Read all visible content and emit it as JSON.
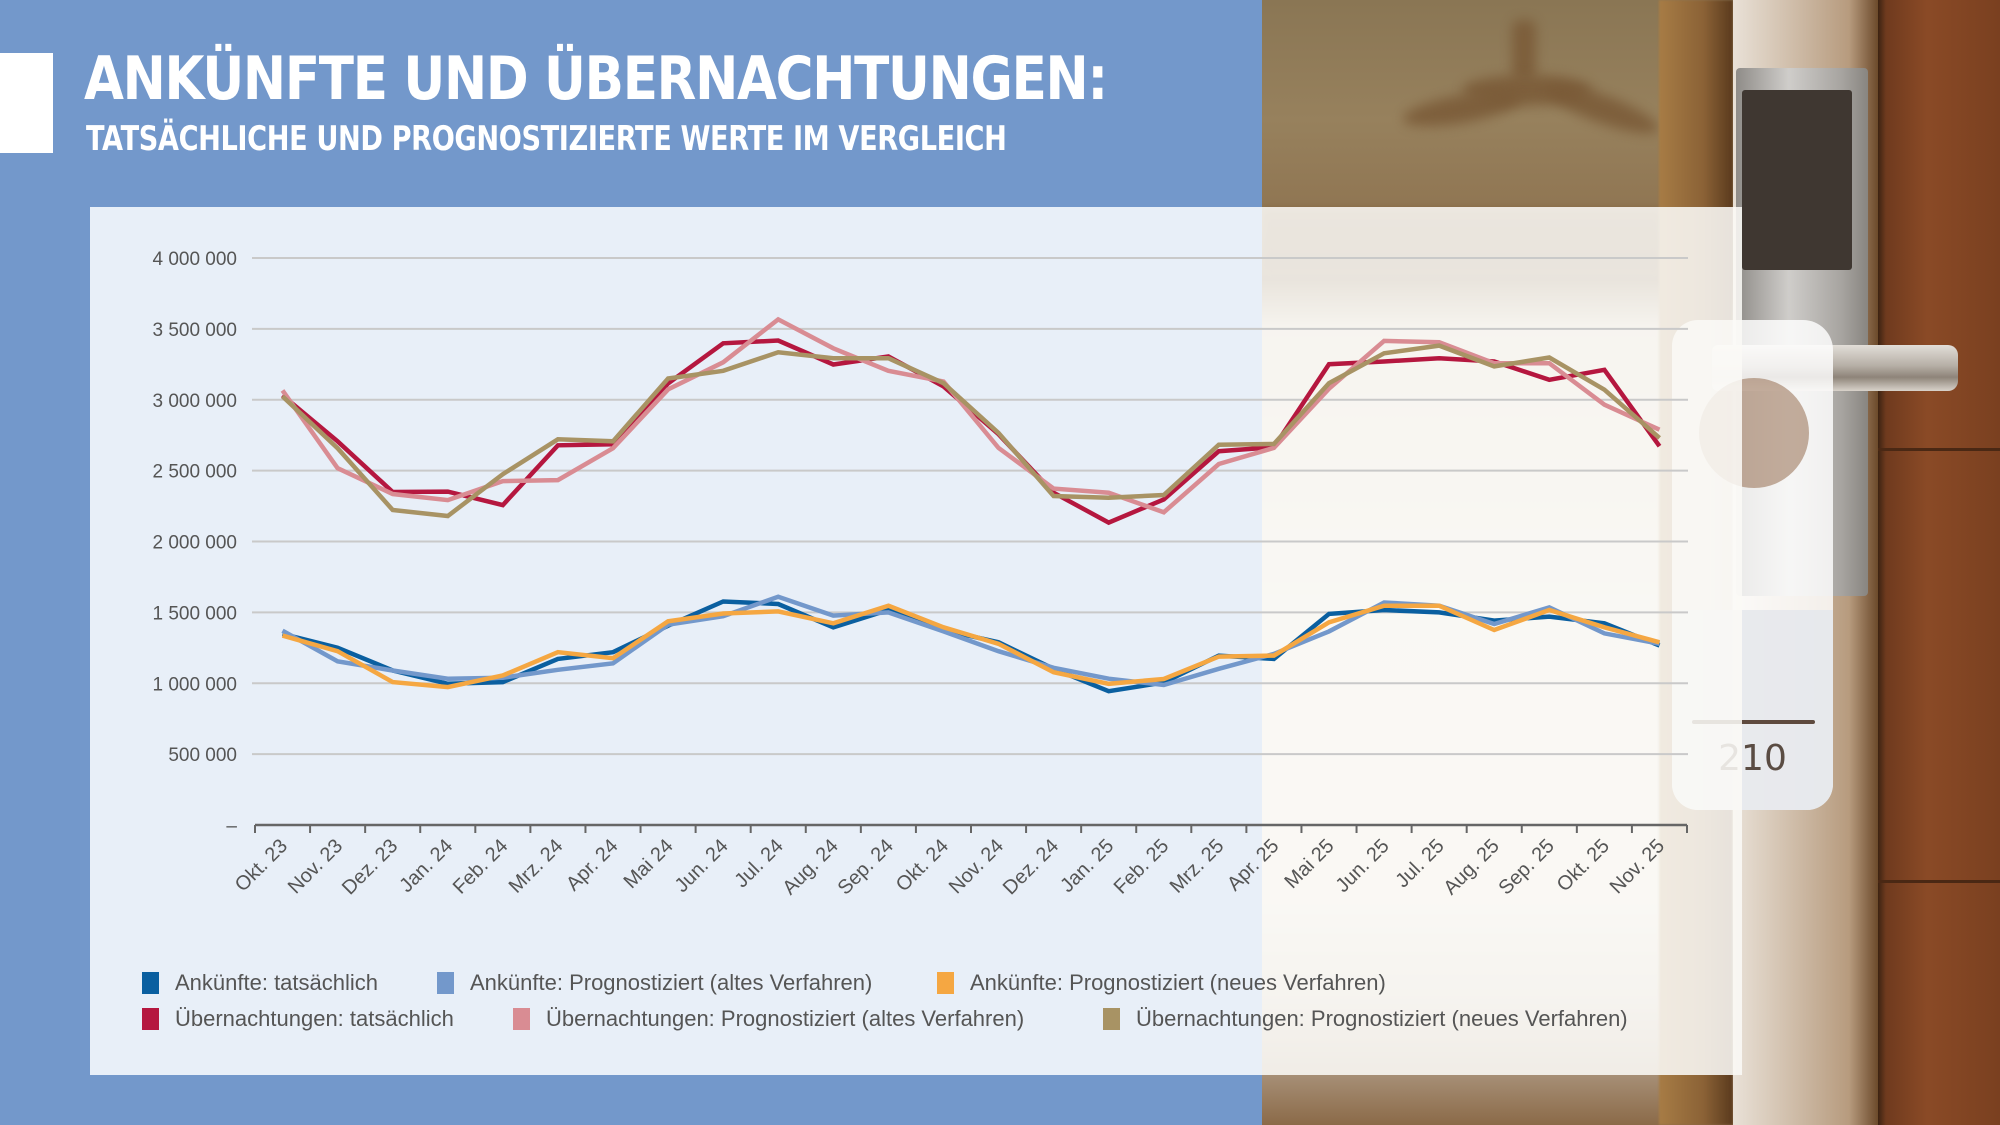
{
  "header": {
    "title": "ANKÜNFTE UND ÜBERNACHTUNGEN:",
    "subtitle": "TATSÄCHLICHE UND PROGNOSTIZIERTE WERTE IM VERGLEICH"
  },
  "photo": {
    "door_hanger_number": "210"
  },
  "chart_data": {
    "type": "line",
    "title": "ANKÜNFTE UND ÜBERNACHTUNGEN: TATSÄCHLICHE UND PROGNOSTIZIERTE WERTE IM VERGLEICH",
    "xlabel": "",
    "ylabel": "",
    "ylim": [
      0,
      4000000
    ],
    "y_ticks": [
      0,
      500000,
      1000000,
      1500000,
      2000000,
      2500000,
      3000000,
      3500000,
      4000000
    ],
    "y_tick_labels": [
      "–",
      "500 000",
      "1 000 000",
      "1 500 000",
      "2 000 000",
      "2 500 000",
      "3 000 000",
      "3 500 000",
      "4 000 000"
    ],
    "grid": true,
    "legend_position": "bottom",
    "categories": [
      "Okt. 23",
      "Nov. 23",
      "Dez. 23",
      "Jan. 24",
      "Feb. 24",
      "Mrz. 24",
      "Apr. 24",
      "Mai 24",
      "Jun. 24",
      "Jul. 24",
      "Aug. 24",
      "Sep. 24",
      "Okt. 24",
      "Nov. 24",
      "Dez. 24",
      "Jan. 25",
      "Feb. 25",
      "Mrz. 25",
      "Apr. 25",
      "Mai 25",
      "Jun. 25",
      "Jul. 25",
      "Aug. 25",
      "Sep. 25",
      "Okt. 25",
      "Nov. 25"
    ],
    "series": [
      {
        "name": "Ankünfte: tatsächlich",
        "color": "#0a5fa0",
        "values": [
          1348000,
          1250000,
          1090000,
          996000,
          1008000,
          1172000,
          1219000,
          1406000,
          1577000,
          1559000,
          1395000,
          1517000,
          1376000,
          1289000,
          1102000,
          944000,
          1005000,
          1195000,
          1172000,
          1489000,
          1517000,
          1500000,
          1442000,
          1470000,
          1423000,
          1266000
        ]
      },
      {
        "name": "Ankünfte: Prognostiziert (altes Verfahren)",
        "color": "#7398cb",
        "values": [
          1371000,
          1155000,
          1090000,
          1032000,
          1039000,
          1095000,
          1141000,
          1413000,
          1473000,
          1610000,
          1477000,
          1500000,
          1366000,
          1226000,
          1109000,
          1032000,
          988000,
          1102000,
          1207000,
          1366000,
          1570000,
          1547000,
          1418000,
          1535000,
          1352000,
          1278000
        ]
      },
      {
        "name": "Ankünfte: Prognostiziert (neues Verfahren)",
        "color": "#f5a742",
        "values": [
          1336000,
          1226000,
          1008000,
          973000,
          1055000,
          1219000,
          1177000,
          1437000,
          1492000,
          1507000,
          1423000,
          1547000,
          1395000,
          1278000,
          1078000,
          996000,
          1030000,
          1188000,
          1195000,
          1430000,
          1547000,
          1547000,
          1376000,
          1517000,
          1395000,
          1289000
        ]
      },
      {
        "name": "Übernachtungen: tatsächlich",
        "color": "#b5173f",
        "values": [
          3031000,
          2707000,
          2349000,
          2352000,
          2257000,
          2679000,
          2686000,
          3115000,
          3398000,
          3418000,
          3249000,
          3305000,
          3094000,
          2757000,
          2344000,
          2133000,
          2297000,
          2637000,
          2665000,
          3251000,
          3270000,
          3293000,
          3270000,
          3141000,
          3211000,
          2672000
        ]
      },
      {
        "name": "Übernachtungen: Prognostiziert (altes Verfahren)",
        "color": "#d98c93",
        "values": [
          3066000,
          2517000,
          2335000,
          2292000,
          2426000,
          2433000,
          2658000,
          3073000,
          3264000,
          3567000,
          3363000,
          3204000,
          3129000,
          2660000,
          2373000,
          2344000,
          2206000,
          2547000,
          2660000,
          3078000,
          3415000,
          3405000,
          3258000,
          3258000,
          2965000,
          2789000
        ]
      },
      {
        "name": "Übernachtungen: Prognostiziert (neues Verfahren)",
        "color": "#a89364",
        "values": [
          3024000,
          2658000,
          2222000,
          2180000,
          2475000,
          2721000,
          2707000,
          3150000,
          3204000,
          3335000,
          3293000,
          3293000,
          3117000,
          2766000,
          2321000,
          2309000,
          2328000,
          2683000,
          2688000,
          3117000,
          3328000,
          3382000,
          3235000,
          3298000,
          3071000,
          2730000
        ]
      }
    ]
  },
  "legend": {
    "row1": [
      {
        "label": "Ankünfte: tatsächlich",
        "color": "#0a5fa0"
      },
      {
        "label": "Ankünfte: Prognostiziert (altes Verfahren)",
        "color": "#7398cb"
      },
      {
        "label": "Ankünfte: Prognostiziert (neues Verfahren)",
        "color": "#f5a742"
      }
    ],
    "row2": [
      {
        "label": "Übernachtungen: tatsächlich",
        "color": "#b5173f"
      },
      {
        "label": "Übernachtungen: Prognostiziert (altes Verfahren)",
        "color": "#d98c93"
      },
      {
        "label": "Übernachtungen: Prognostiziert (neues Verfahren)",
        "color": "#a89364"
      }
    ]
  }
}
